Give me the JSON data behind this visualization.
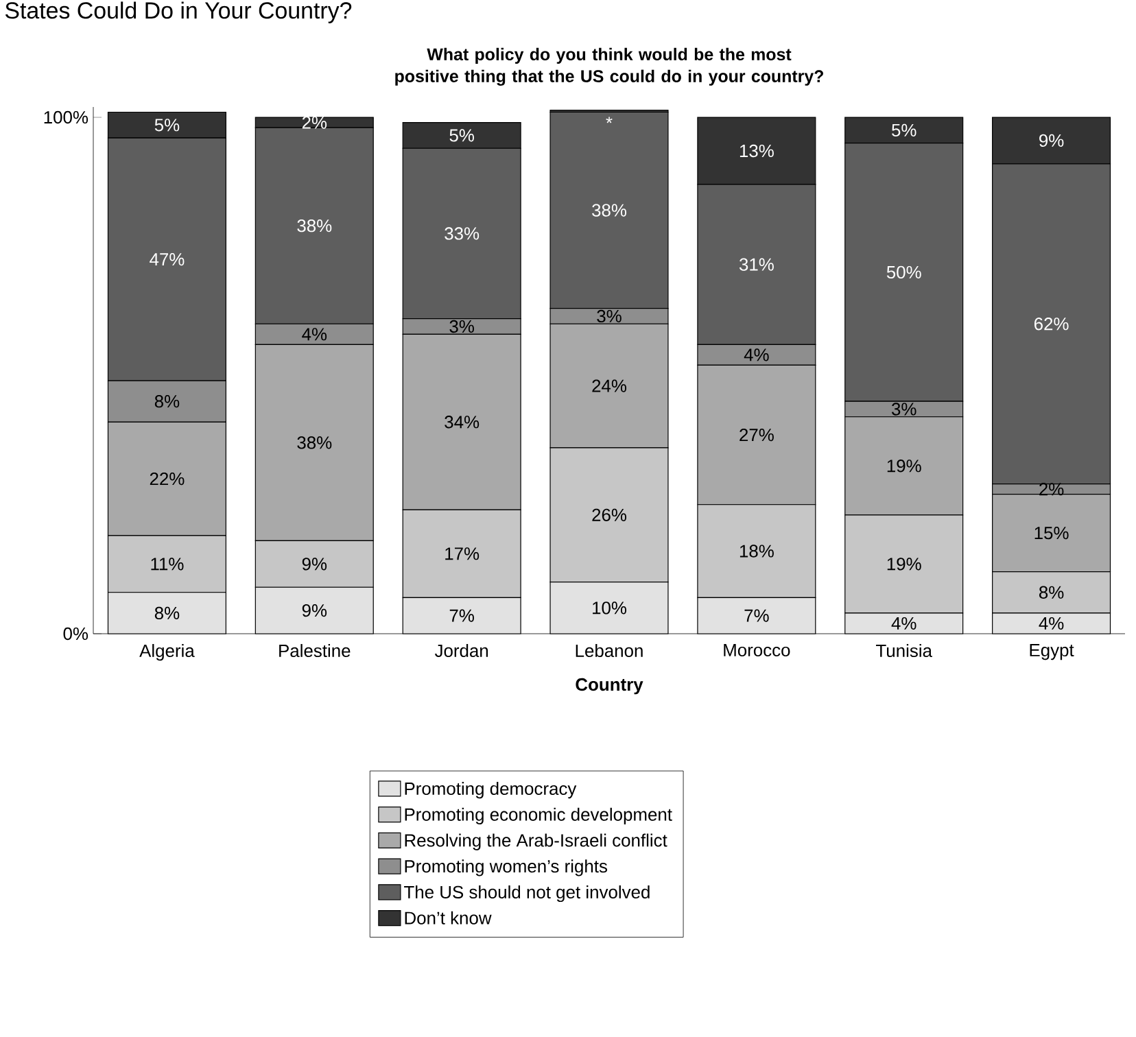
{
  "chart_data": {
    "type": "bar",
    "stacked": true,
    "title": "What policy do you think would be the most positive thing that the US could do in your country?",
    "xlabel": "Country",
    "annotations": [
      "States Could Do in Your Country?"
    ],
    "categories": [
      "Algeria",
      "Palestine",
      "Jordan",
      "Lebanon",
      "Morocco",
      "Tunisia",
      "Egypt"
    ],
    "ylim": [
      0,
      102
    ],
    "yticks": [
      {
        "value": 0,
        "label": "0%"
      },
      {
        "value": 100,
        "label": "100%"
      }
    ],
    "legend": "bottom",
    "series": [
      {
        "name": "Promoting democracy",
        "color": "#e2e2e2",
        "values": [
          8,
          9,
          7,
          10,
          7,
          4,
          4
        ],
        "value_labels": [
          "8%",
          "9%",
          "7%",
          "10%",
          "7%",
          "4%",
          "4%"
        ]
      },
      {
        "name": "Promoting economic development",
        "color": "#c6c6c6",
        "values": [
          11,
          9,
          17,
          26,
          18,
          19,
          8
        ],
        "value_labels": [
          "11%",
          "9%",
          "17%",
          "26%",
          "18%",
          "19%",
          "8%"
        ]
      },
      {
        "name": "Resolving the Arab-Israeli conflict",
        "color": "#a9a9a9",
        "values": [
          22,
          38,
          34,
          24,
          27,
          19,
          15
        ],
        "value_labels": [
          "22%",
          "38%",
          "34%",
          "24%",
          "27%",
          "19%",
          "15%"
        ]
      },
      {
        "name": "Promoting women’s rights",
        "color": "#8e8e8e",
        "values": [
          8,
          4,
          3,
          3,
          4,
          3,
          2
        ],
        "value_labels": [
          "8%",
          "4%",
          "3%",
          "3%",
          "4%",
          "3%",
          "2%"
        ]
      },
      {
        "name": "The US should not get involved",
        "color": "#5e5e5e",
        "values": [
          47,
          38,
          33,
          38,
          31,
          50,
          62
        ],
        "value_labels": [
          "47%",
          "38%",
          "33%",
          "38%",
          "31%",
          "50%",
          "62%"
        ]
      },
      {
        "name": "Don’t know",
        "color": "#333333",
        "values": [
          5,
          2,
          5,
          0.4,
          13,
          5,
          9
        ],
        "value_labels": [
          "5%",
          "2%",
          "5%",
          "*",
          "13%",
          "5%",
          "9%"
        ]
      }
    ]
  }
}
